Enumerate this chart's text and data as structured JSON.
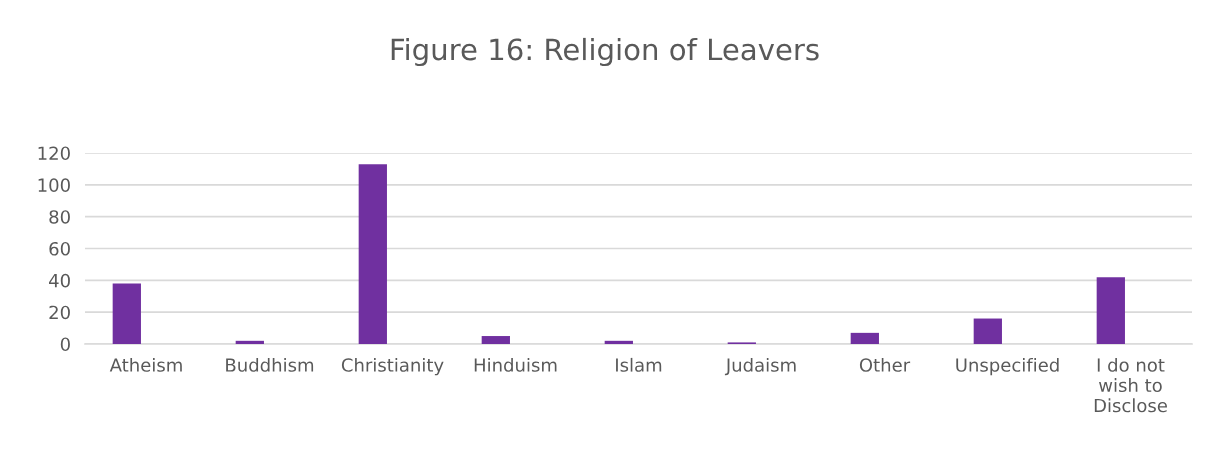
{
  "chart_data": {
    "type": "bar",
    "title": "Figure 16: Religion of Leavers",
    "categories": [
      "Atheism",
      "Buddhism",
      "Christianity",
      "Hinduism",
      "Islam",
      "Judaism",
      "Other",
      "Unspecified",
      "I do not\nwish to\nDisclose"
    ],
    "values": [
      38,
      2,
      113,
      5,
      2,
      1,
      7,
      16,
      42
    ],
    "color": "#7030a0",
    "ylim": [
      0,
      120
    ],
    "yticks": [
      0,
      20,
      40,
      60,
      80,
      100,
      120
    ],
    "grid": "y"
  }
}
